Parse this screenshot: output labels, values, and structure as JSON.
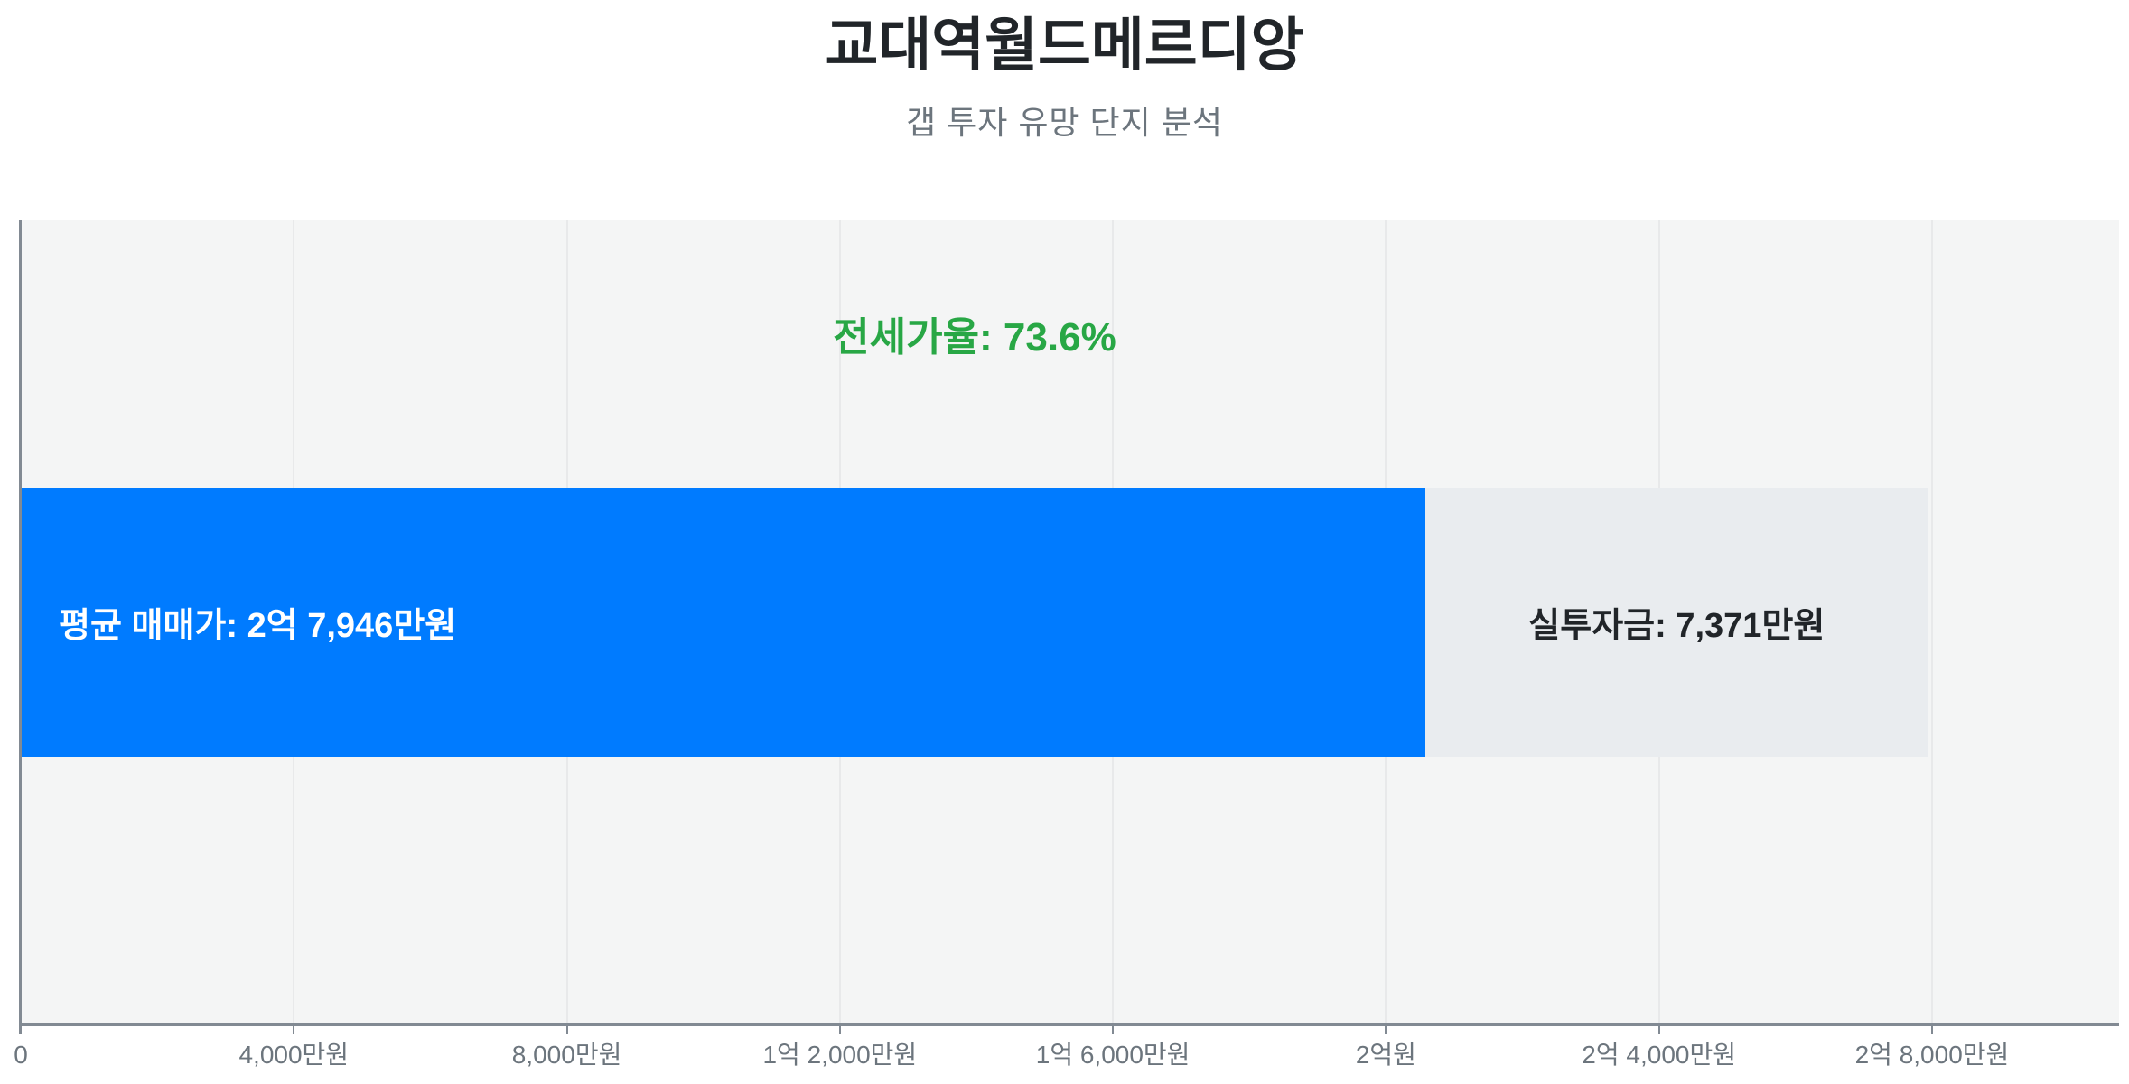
{
  "header": {
    "title": "교대역월드메르디앙",
    "subtitle": "갭 투자 유망 단지 분석"
  },
  "chart_data": {
    "type": "bar",
    "orientation": "horizontal",
    "stacked": true,
    "title": "교대역월드메르디앙",
    "subtitle": "갭 투자 유망 단지 분석",
    "unit": "만원",
    "xlim": [
      0,
      30740
    ],
    "grid": true,
    "legend": "none",
    "x_ticks": [
      {
        "value": 0,
        "label": "0"
      },
      {
        "value": 4000,
        "label": "4,000만원"
      },
      {
        "value": 8000,
        "label": "8,000만원"
      },
      {
        "value": 12000,
        "label": "1억 2,000만원"
      },
      {
        "value": 16000,
        "label": "1억 6,000만원"
      },
      {
        "value": 20000,
        "label": "2억원"
      },
      {
        "value": 24000,
        "label": "2억 4,000만원"
      },
      {
        "value": 28000,
        "label": "2억 8,000만원"
      }
    ],
    "segments": [
      {
        "value": 20575,
        "color": "#007bff",
        "text_color": "#ffffff",
        "label": "평균 매매가: 2억 7,946만원",
        "label_align": "left"
      },
      {
        "value": 7371,
        "color": "#e9ecef",
        "text_color": "#212529",
        "label": "실투자금: 7,371만원",
        "label_align": "center"
      }
    ],
    "annotation": {
      "text": "전세가율: 73.6%",
      "color": "#28a745"
    },
    "totals": {
      "average_sale_price_label": "2억 7,946만원",
      "average_sale_price_value": 27946,
      "net_investment_label": "7,371만원",
      "net_investment_value": 7371,
      "jeonse_ratio_pct": 73.6
    },
    "colors": {
      "bar_primary": "#007bff",
      "bar_secondary": "#e9ecef",
      "annotation_green": "#28a745",
      "title_text": "#212529",
      "subtitle_text": "#6c757d",
      "tick_text": "#6c757d",
      "axis_line": "#828a93",
      "plot_background": "#f4f5f5",
      "gridline": "#e8e9ea",
      "page_background": "#ffffff"
    }
  }
}
